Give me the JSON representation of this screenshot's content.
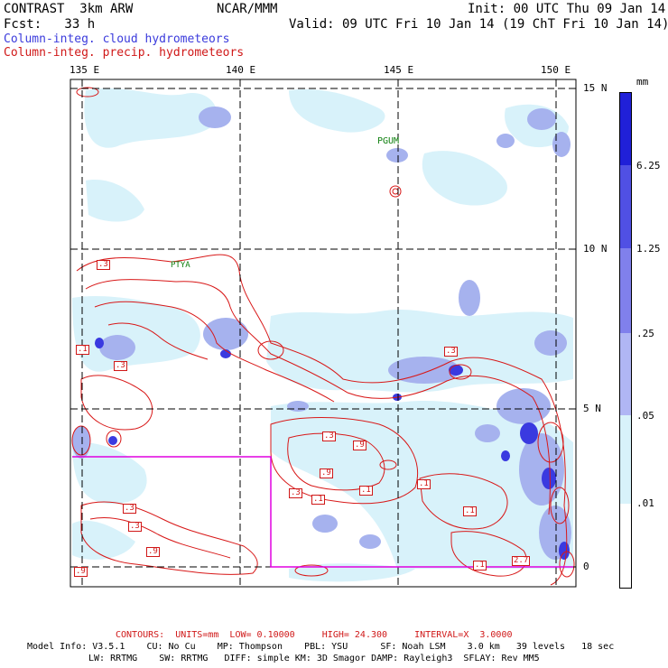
{
  "header": {
    "model": "CONTRAST  3km ARW",
    "org": "NCAR/MMM",
    "init": "Init: 00 UTC Thu 09 Jan 14",
    "fcst": "Fcst:   33 h",
    "valid": "Valid: 09 UTC Fri 10 Jan 14 (19 ChT Fri 10 Jan 14)"
  },
  "legend": {
    "cloud": "Column-integ. cloud hydrometeors",
    "precip": "Column-integ. precip. hydrometeors"
  },
  "axes": {
    "lon_labels": [
      "135 E",
      "140 E",
      "145 E",
      "150 E"
    ],
    "lat_labels": [
      "15 N",
      "10 N",
      "5 N",
      "0"
    ]
  },
  "places": [
    "PGUM",
    "PTYA"
  ],
  "contour_labels": [
    ".3",
    ".1",
    ".3",
    ".1",
    ".3",
    ".9",
    ".9",
    ".3",
    ".1",
    ".1",
    ".1",
    ".3",
    ".9",
    ".9",
    ".1",
    "2.7",
    ".1"
  ],
  "colorbar": {
    "unit": "mm",
    "ticks": [
      "6.25",
      "1.25",
      ".25",
      ".05",
      ".01"
    ],
    "colors": [
      "#2020d8",
      "#5050e4",
      "#8080ec",
      "#b0b6f4",
      "#d8f2fa",
      "#ffffff"
    ]
  },
  "footer": {
    "contours": "CONTOURS:  UNITS=mm  LOW= 0.10000     HIGH= 24.300     INTERVAL=X  3.0000",
    "model_info_1": "Model Info: V3.5.1    CU: No Cu    MP: Thompson    PBL: YSU      SF: Noah LSM    3.0 km   39 levels   18 sec",
    "model_info_2": "LW: RRTMG    SW: RRTMG   DIFF: simple KM: 3D Smagor DAMP: Rayleigh3  SFLAY: Rev MM5"
  }
}
